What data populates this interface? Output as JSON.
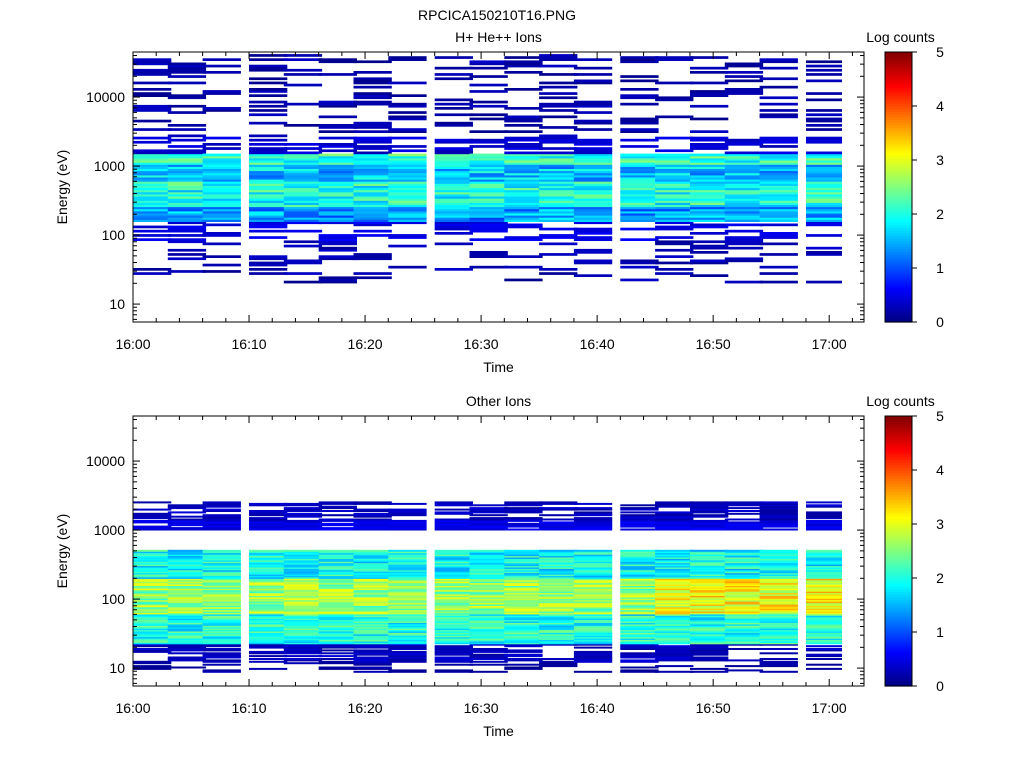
{
  "figure": {
    "title": "RPCICA150210T16.PNG"
  },
  "chart_data": [
    {
      "type": "heatmap",
      "title": "H+ He++ Ions",
      "xlabel": "Time",
      "ylabel": "Energy (eV)",
      "xticks": [
        "16:00",
        "16:10",
        "16:20",
        "16:30",
        "16:40",
        "16:50",
        "17:00"
      ],
      "x_range": [
        "16:00",
        "17:03"
      ],
      "yscale": "log",
      "ylim": [
        5.5,
        45000
      ],
      "yticks": [
        "10",
        "100",
        "1000",
        "10000"
      ],
      "colorbar": {
        "label": "Log counts",
        "range": [
          0,
          5
        ],
        "ticks": [
          "0",
          "1",
          "2",
          "3",
          "4",
          "5"
        ]
      },
      "time_bins": [
        "16:00",
        "16:03",
        "16:06",
        "16:10",
        "16:13",
        "16:16",
        "16:19",
        "16:22",
        "16:26",
        "16:29",
        "16:32",
        "16:35",
        "16:38",
        "16:42",
        "16:45",
        "16:48",
        "16:51",
        "16:54",
        "16:58"
      ],
      "bands": [
        {
          "energy_range_eV": [
            20,
            30
          ],
          "log_counts": 0.2,
          "fill": 0.15
        },
        {
          "energy_range_eV": [
            30,
            80
          ],
          "log_counts": 0.25,
          "fill": 0.25
        },
        {
          "energy_range_eV": [
            80,
            150
          ],
          "log_counts": 0.5,
          "fill": 0.45
        },
        {
          "energy_range_eV": [
            150,
            250
          ],
          "log_counts": 1.4,
          "fill": 1.0
        },
        {
          "energy_range_eV": [
            250,
            600
          ],
          "log_counts": 2.0,
          "fill": 1.0
        },
        {
          "energy_range_eV": [
            600,
            1000
          ],
          "log_counts": 1.6,
          "fill": 1.0
        },
        {
          "energy_range_eV": [
            1000,
            1500
          ],
          "log_counts": 2.1,
          "fill": 1.0
        },
        {
          "energy_range_eV": [
            1500,
            2500
          ],
          "log_counts": 0.4,
          "fill": 0.5
        },
        {
          "energy_range_eV": [
            2500,
            8000
          ],
          "log_counts": 0.2,
          "fill": 0.25
        },
        {
          "energy_range_eV": [
            8000,
            40000
          ],
          "log_counts": 0.2,
          "fill": 0.3
        }
      ]
    },
    {
      "type": "heatmap",
      "title": "Other Ions",
      "xlabel": "Time",
      "ylabel": "Energy (eV)",
      "xticks": [
        "16:00",
        "16:10",
        "16:20",
        "16:30",
        "16:40",
        "16:50",
        "17:00"
      ],
      "x_range": [
        "16:00",
        "17:03"
      ],
      "yscale": "log",
      "ylim": [
        5.5,
        45000
      ],
      "yticks": [
        "10",
        "100",
        "1000",
        "10000"
      ],
      "colorbar": {
        "label": "Log counts",
        "range": [
          0,
          5
        ],
        "ticks": [
          "0",
          "1",
          "2",
          "3",
          "4",
          "5"
        ]
      },
      "time_bins": [
        "16:00",
        "16:03",
        "16:06",
        "16:10",
        "16:13",
        "16:16",
        "16:19",
        "16:22",
        "16:26",
        "16:29",
        "16:32",
        "16:35",
        "16:38",
        "16:42",
        "16:45",
        "16:48",
        "16:51",
        "16:54",
        "16:58"
      ],
      "bands": [
        {
          "energy_range_eV": [
            6,
            12
          ],
          "log_counts": 0.15,
          "fill": 0.3
        },
        {
          "energy_range_eV": [
            12,
            22
          ],
          "log_counts": 0.3,
          "fill": 0.7
        },
        {
          "energy_range_eV": [
            22,
            60
          ],
          "log_counts": 2.0,
          "fill": 1.0
        },
        {
          "energy_range_eV": [
            60,
            200
          ],
          "log_counts": 2.6,
          "fill": 1.0
        },
        {
          "energy_range_eV": [
            200,
            500
          ],
          "log_counts": 1.9,
          "fill": 1.0
        },
        {
          "energy_range_eV": [
            1000,
            1400
          ],
          "log_counts": 0.5,
          "fill": 0.9
        },
        {
          "energy_range_eV": [
            1400,
            2600
          ],
          "log_counts": 0.3,
          "fill": 0.6
        }
      ]
    }
  ]
}
